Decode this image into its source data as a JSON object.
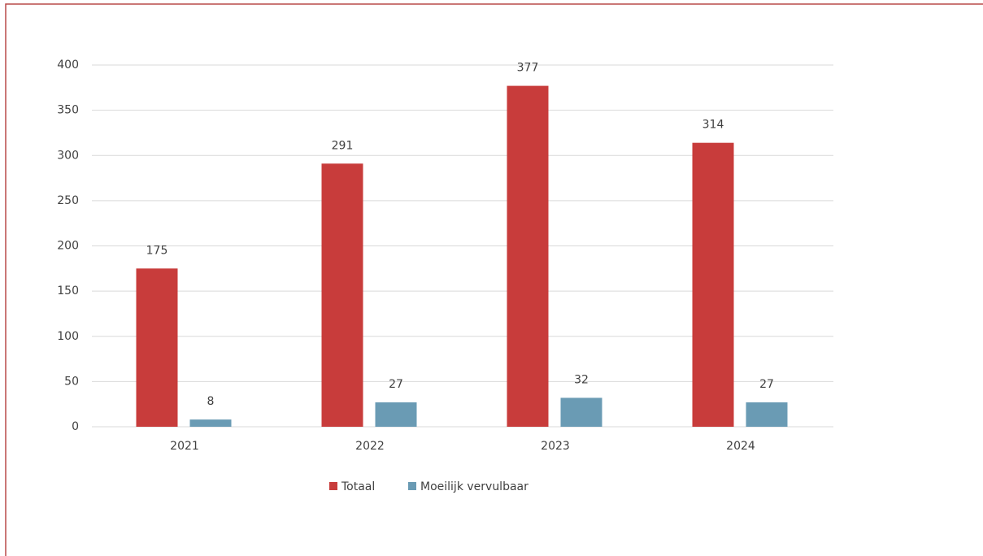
{
  "chart_data": {
    "type": "bar",
    "categories": [
      "2021",
      "2022",
      "2023",
      "2024"
    ],
    "series": [
      {
        "name": "Totaal",
        "color": "#c83c3b",
        "values": [
          175,
          291,
          377,
          314
        ]
      },
      {
        "name": "Moeilijk vervulbaar",
        "color": "#6a9bb4",
        "values": [
          8,
          27,
          32,
          27
        ]
      }
    ],
    "ylim": [
      0,
      400
    ],
    "yticks": [
      0,
      50,
      100,
      150,
      200,
      250,
      300,
      350,
      400
    ],
    "grid": true,
    "legend": "bottom"
  }
}
